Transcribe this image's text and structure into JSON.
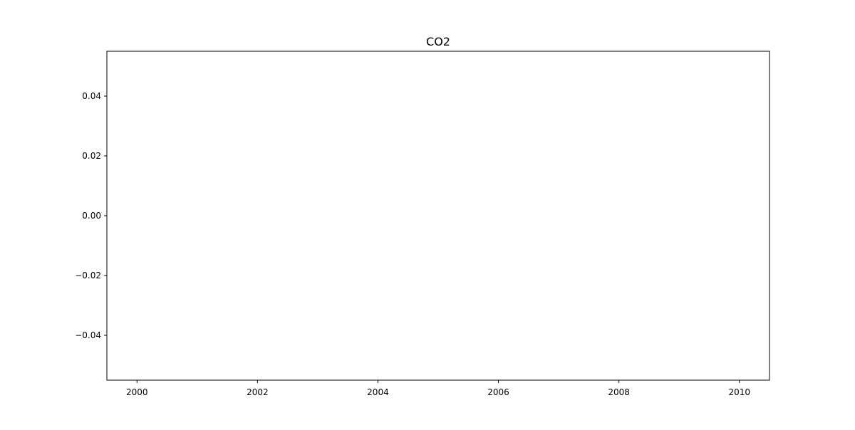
{
  "chart_data": {
    "type": "line",
    "title": "CO2",
    "xlabel": "",
    "ylabel": "",
    "series": [],
    "xlim": [
      1999.5,
      2010.5
    ],
    "ylim": [
      -0.055,
      0.055
    ],
    "x_ticks": [
      2000,
      2002,
      2004,
      2006,
      2008,
      2010
    ],
    "x_tick_labels": [
      "2000",
      "2002",
      "2004",
      "2006",
      "2008",
      "2010"
    ],
    "y_ticks": [
      0.04,
      0.02,
      0.0,
      -0.02,
      -0.04
    ],
    "y_tick_labels": [
      "0.04",
      "0.02",
      "0.00",
      "−0.02",
      "−0.04"
    ],
    "grid": false,
    "legend": "none"
  }
}
